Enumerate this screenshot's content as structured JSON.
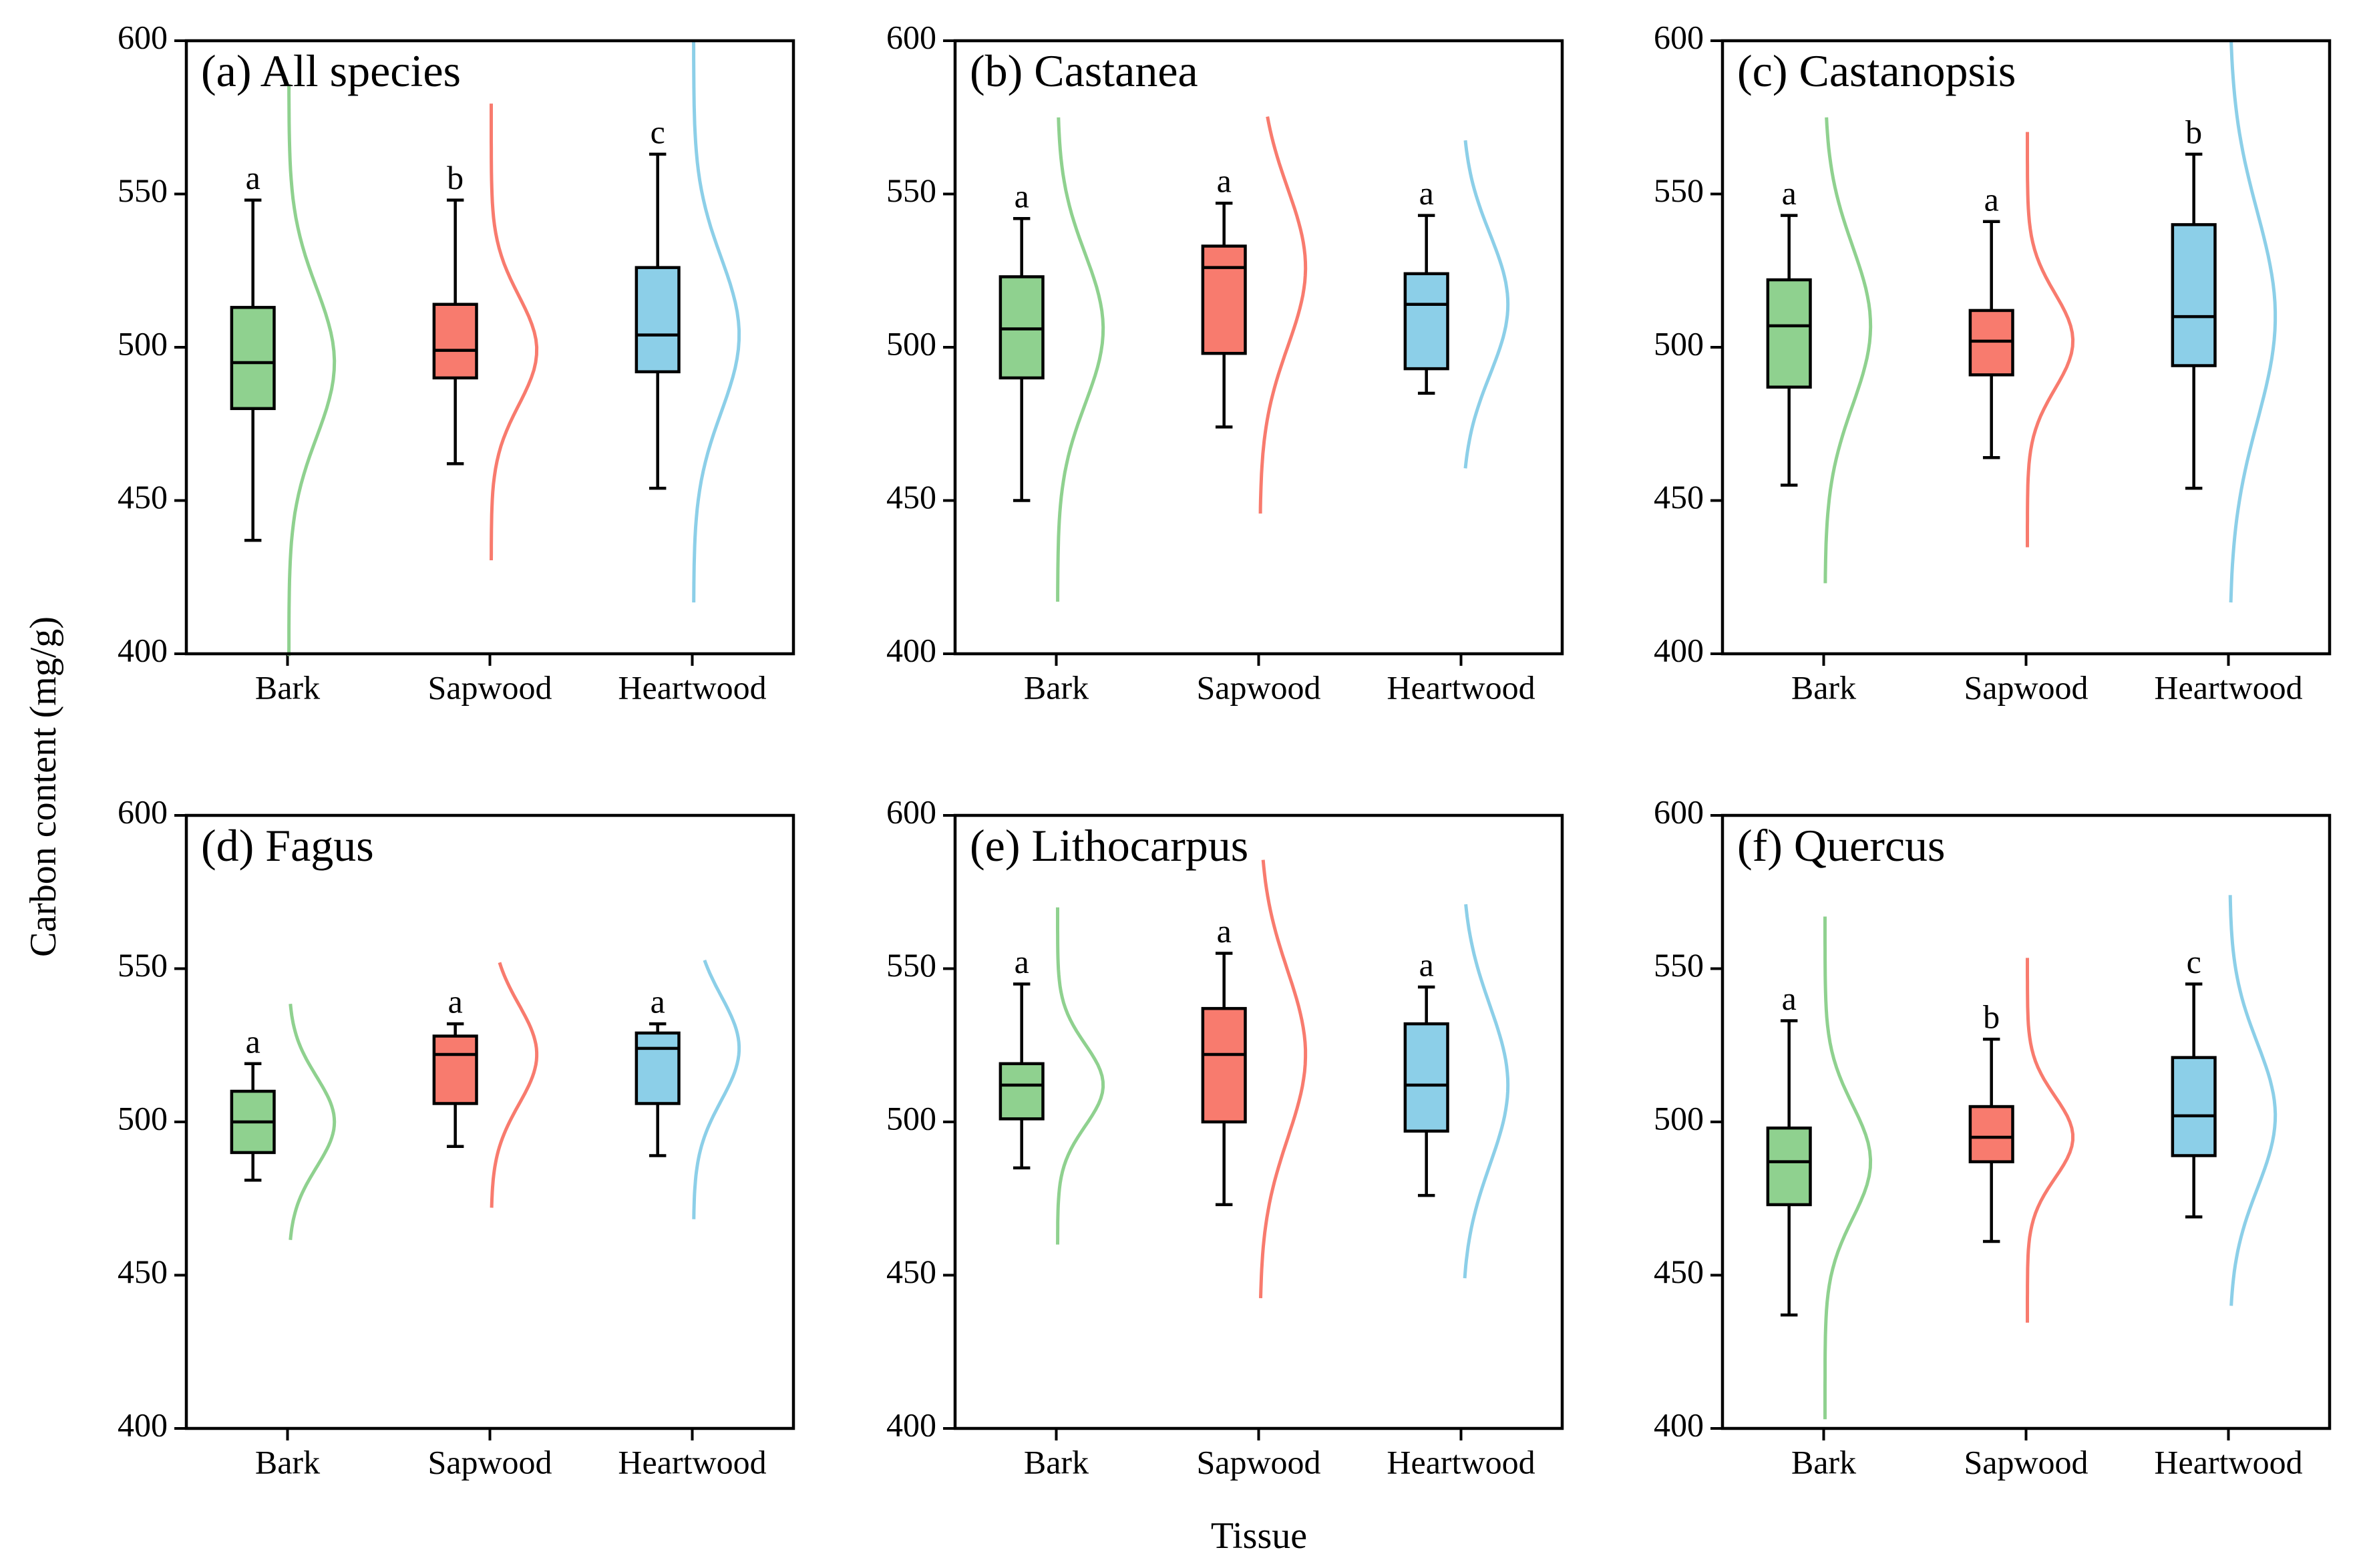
{
  "y_label": "Carbon content (mg/g)",
  "x_label": "Tissue",
  "chart_data": [
    {
      "type": "box",
      "title": "(a) All species",
      "categories": [
        "Bark",
        "Sapwood",
        "Heartwood"
      ],
      "colors": [
        "#8fd18f",
        "#f87b6e",
        "#8ccfe8"
      ],
      "stats": [
        {
          "min": 437,
          "q1": 480,
          "median": 495,
          "q3": 513,
          "max": 548
        },
        {
          "min": 462,
          "q1": 490,
          "median": 499,
          "q3": 514,
          "max": 548
        },
        {
          "min": 454,
          "q1": 492,
          "median": 504,
          "q3": 526,
          "max": 563
        }
      ],
      "letters": [
        "a",
        "b",
        "c"
      ],
      "ylim": [
        400,
        600
      ],
      "yticks": [
        400,
        450,
        500,
        550,
        600
      ]
    },
    {
      "type": "box",
      "title": "(b) Castanea",
      "categories": [
        "Bark",
        "Sapwood",
        "Heartwood"
      ],
      "colors": [
        "#8fd18f",
        "#f87b6e",
        "#8ccfe8"
      ],
      "stats": [
        {
          "min": 450,
          "q1": 490,
          "median": 506,
          "q3": 523,
          "max": 542
        },
        {
          "min": 474,
          "q1": 498,
          "median": 526,
          "q3": 533,
          "max": 547
        },
        {
          "min": 485,
          "q1": 493,
          "median": 514,
          "q3": 524,
          "max": 543
        }
      ],
      "letters": [
        "a",
        "a",
        "a"
      ],
      "ylim": [
        400,
        600
      ],
      "yticks": [
        400,
        450,
        500,
        550,
        600
      ]
    },
    {
      "type": "box",
      "title": "(c) Castanopsis",
      "categories": [
        "Bark",
        "Sapwood",
        "Heartwood"
      ],
      "colors": [
        "#8fd18f",
        "#f87b6e",
        "#8ccfe8"
      ],
      "stats": [
        {
          "min": 455,
          "q1": 487,
          "median": 507,
          "q3": 522,
          "max": 543
        },
        {
          "min": 464,
          "q1": 491,
          "median": 502,
          "q3": 512,
          "max": 541
        },
        {
          "min": 454,
          "q1": 494,
          "median": 510,
          "q3": 540,
          "max": 563
        }
      ],
      "letters": [
        "a",
        "a",
        "b"
      ],
      "ylim": [
        400,
        600
      ],
      "yticks": [
        400,
        450,
        500,
        550,
        600
      ]
    },
    {
      "type": "box",
      "title": "(d) Fagus",
      "categories": [
        "Bark",
        "Sapwood",
        "Heartwood"
      ],
      "colors": [
        "#8fd18f",
        "#f87b6e",
        "#8ccfe8"
      ],
      "stats": [
        {
          "min": 481,
          "q1": 490,
          "median": 500,
          "q3": 510,
          "max": 519
        },
        {
          "min": 492,
          "q1": 506,
          "median": 522,
          "q3": 528,
          "max": 532
        },
        {
          "min": 489,
          "q1": 506,
          "median": 524,
          "q3": 529,
          "max": 532
        }
      ],
      "letters": [
        "a",
        "a",
        "a"
      ],
      "ylim": [
        400,
        600
      ],
      "yticks": [
        400,
        450,
        500,
        550,
        600
      ]
    },
    {
      "type": "box",
      "title": "(e) Lithocarpus",
      "categories": [
        "Bark",
        "Sapwood",
        "Heartwood"
      ],
      "colors": [
        "#8fd18f",
        "#f87b6e",
        "#8ccfe8"
      ],
      "stats": [
        {
          "min": 485,
          "q1": 501,
          "median": 512,
          "q3": 519,
          "max": 545
        },
        {
          "min": 473,
          "q1": 500,
          "median": 522,
          "q3": 537,
          "max": 555
        },
        {
          "min": 476,
          "q1": 497,
          "median": 512,
          "q3": 532,
          "max": 544
        }
      ],
      "letters": [
        "a",
        "a",
        "a"
      ],
      "ylim": [
        400,
        600
      ],
      "yticks": [
        400,
        450,
        500,
        550,
        600
      ]
    },
    {
      "type": "box",
      "title": "(f) Quercus",
      "categories": [
        "Bark",
        "Sapwood",
        "Heartwood"
      ],
      "colors": [
        "#8fd18f",
        "#f87b6e",
        "#8ccfe8"
      ],
      "stats": [
        {
          "min": 437,
          "q1": 473,
          "median": 487,
          "q3": 498,
          "max": 533
        },
        {
          "min": 461,
          "q1": 487,
          "median": 495,
          "q3": 505,
          "max": 527
        },
        {
          "min": 469,
          "q1": 489,
          "median": 502,
          "q3": 521,
          "max": 545
        }
      ],
      "letters": [
        "a",
        "b",
        "c"
      ],
      "ylim": [
        400,
        600
      ],
      "yticks": [
        400,
        450,
        500,
        550,
        600
      ]
    }
  ]
}
